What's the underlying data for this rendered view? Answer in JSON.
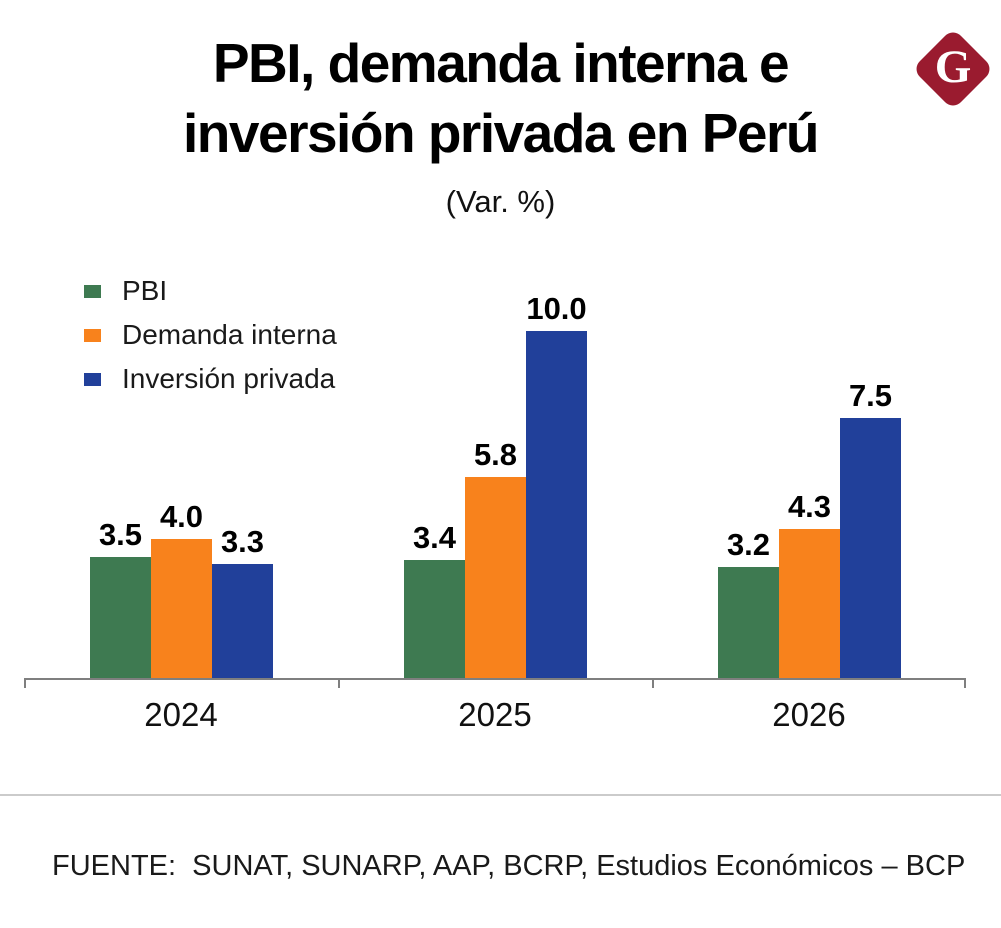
{
  "header": {
    "title_line1": "PBI, demanda interna e",
    "title_line2": "inversión privada en Perú",
    "subtitle": "(Var. %)"
  },
  "logo": {
    "letter": "G",
    "color": "#9a1b2f"
  },
  "legend": [
    {
      "label": "PBI",
      "color": "#3e7a51"
    },
    {
      "label": "Demanda interna",
      "color": "#f8821c"
    },
    {
      "label": "Inversión privada",
      "color": "#21409a"
    }
  ],
  "chart_data": {
    "type": "bar",
    "title": "PBI, demanda interna e inversión privada en Perú",
    "subtitle": "(Var. %)",
    "categories": [
      "2024",
      "2025",
      "2026"
    ],
    "series": [
      {
        "name": "PBI",
        "color": "#3e7a51",
        "values": [
          3.5,
          3.4,
          3.2
        ]
      },
      {
        "name": "Demanda interna",
        "color": "#f8821c",
        "values": [
          4.0,
          5.8,
          4.3
        ]
      },
      {
        "name": "Inversión privada",
        "color": "#21409a",
        "values": [
          3.3,
          10.0,
          7.5
        ]
      }
    ],
    "ylim": [
      0,
      10.5
    ],
    "grid": false,
    "axis_color": "#7f7f7f",
    "legend_position": "top-left",
    "data_labels": true,
    "label_decimals": 1
  },
  "footer": {
    "source": "FUENTE:  SUNAT, SUNARP, AAP, BCRP, Estudios Económicos – BCP"
  }
}
